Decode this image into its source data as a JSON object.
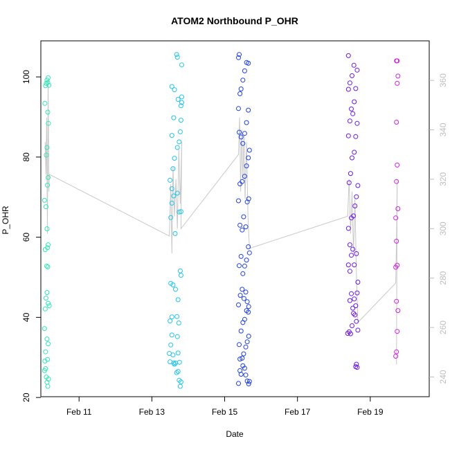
{
  "chart_data": {
    "type": "scatter",
    "title": "ATOM2 Northbound P_OHR",
    "xlabel": "Date",
    "ylabel": "P_OHR",
    "x_unit": "days (Feb 2024)",
    "xlim": [
      9.95,
      20.62
    ],
    "ylim": [
      20.2,
      109.0
    ],
    "y2lim": [
      232.0,
      376.0
    ],
    "x_ticks": [
      11,
      13,
      15,
      17,
      19
    ],
    "x_tick_labels": [
      "Feb 11",
      "Feb 13",
      "Feb 15",
      "Feb 17",
      "Feb 19"
    ],
    "y_ticks": [
      20,
      40,
      60,
      80,
      100
    ],
    "y_tick_labels": [
      "20",
      "40",
      "60",
      "80",
      "100"
    ],
    "y2_ticks": [
      240,
      260,
      280,
      300,
      320,
      340,
      360
    ],
    "y2_tick_labels": [
      "240",
      "260",
      "280",
      "300",
      "320",
      "340",
      "360"
    ],
    "grid": false,
    "legend": "none",
    "colors": {
      "cluster1": "#2ee8b6",
      "cluster2": "#1fc4ec",
      "cluster3": "#1f3fe6",
      "cluster4": "#6a18e6",
      "cluster5": "#d21ee2",
      "line": "#c8c8c8",
      "axis": "#000000",
      "right_axis": "#bdbdbd"
    },
    "series": [
      {
        "color": "#2ee8b6",
        "points": [
          [
            10.05,
            26.7
          ],
          [
            10.06,
            29.1
          ],
          [
            10.08,
            31.4
          ],
          [
            10.05,
            37.2
          ],
          [
            10.07,
            42.1
          ],
          [
            10.09,
            44.8
          ],
          [
            10.12,
            46.2
          ],
          [
            10.15,
            43.5
          ],
          [
            10.18,
            42.9
          ],
          [
            10.08,
            27.2
          ],
          [
            10.1,
            25.1
          ],
          [
            10.12,
            23.8
          ],
          [
            10.14,
            22.8
          ],
          [
            10.16,
            24.6
          ],
          [
            10.13,
            29.5
          ],
          [
            10.15,
            33.4
          ],
          [
            10.12,
            34.6
          ],
          [
            10.11,
            52.8
          ],
          [
            10.07,
            56.9
          ],
          [
            10.13,
            57.4
          ],
          [
            10.15,
            58.1
          ],
          [
            10.14,
            52.6
          ],
          [
            10.05,
            69.2
          ],
          [
            10.09,
            67.6
          ],
          [
            10.12,
            62.1
          ],
          [
            10.13,
            73.0
          ],
          [
            10.15,
            74.9
          ],
          [
            10.1,
            80.5
          ],
          [
            10.12,
            82.4
          ],
          [
            10.16,
            88.4
          ],
          [
            10.14,
            91.2
          ],
          [
            10.06,
            93.4
          ],
          [
            10.08,
            97.8
          ],
          [
            10.1,
            98.4
          ],
          [
            10.12,
            99.2
          ],
          [
            10.15,
            99.8
          ],
          [
            10.17,
            97.9
          ],
          [
            10.14,
            98.6
          ]
        ]
      },
      {
        "color": "#1fc4ec",
        "points": [
          [
            13.48,
            31.0
          ],
          [
            13.5,
            28.9
          ],
          [
            13.52,
            33.1
          ],
          [
            13.55,
            35.6
          ],
          [
            13.58,
            30.6
          ],
          [
            13.6,
            28.6
          ],
          [
            13.62,
            28.3
          ],
          [
            13.65,
            28.6
          ],
          [
            13.68,
            26.2
          ],
          [
            13.72,
            26.5
          ],
          [
            13.75,
            24.3
          ],
          [
            13.78,
            22.8
          ],
          [
            13.8,
            23.9
          ],
          [
            13.76,
            28.8
          ],
          [
            13.72,
            31.1
          ],
          [
            13.7,
            35.2
          ],
          [
            13.74,
            38.6
          ],
          [
            13.69,
            40.2
          ],
          [
            13.55,
            40.1
          ],
          [
            13.5,
            39.1
          ],
          [
            13.52,
            48.5
          ],
          [
            13.58,
            48.1
          ],
          [
            13.65,
            47.0
          ],
          [
            13.72,
            44.4
          ],
          [
            13.78,
            51.6
          ],
          [
            13.8,
            50.5
          ],
          [
            13.64,
            60.9
          ],
          [
            13.52,
            64.9
          ],
          [
            13.55,
            68.5
          ],
          [
            13.6,
            70.3
          ],
          [
            13.7,
            71.0
          ],
          [
            13.75,
            66.3
          ],
          [
            13.8,
            66.4
          ],
          [
            13.5,
            74.2
          ],
          [
            13.55,
            72.1
          ],
          [
            13.58,
            77.1
          ],
          [
            13.62,
            79.7
          ],
          [
            13.7,
            82.4
          ],
          [
            13.75,
            83.8
          ],
          [
            13.78,
            86.3
          ],
          [
            13.8,
            89.2
          ],
          [
            13.55,
            85.4
          ],
          [
            13.6,
            89.8
          ],
          [
            13.8,
            92.8
          ],
          [
            13.82,
            93.6
          ],
          [
            13.82,
            95.0
          ],
          [
            13.55,
            97.6
          ],
          [
            13.62,
            96.8
          ],
          [
            13.72,
            94.4
          ],
          [
            13.82,
            103.0
          ],
          [
            13.68,
            105.6
          ],
          [
            13.7,
            104.9
          ]
        ]
      },
      {
        "color": "#1f3fe6",
        "points": [
          [
            15.38,
            23.5
          ],
          [
            15.42,
            26.7
          ],
          [
            15.45,
            25.8
          ],
          [
            15.5,
            27.9
          ],
          [
            15.55,
            27.3
          ],
          [
            15.58,
            25.6
          ],
          [
            15.62,
            24.1
          ],
          [
            15.66,
            23.4
          ],
          [
            15.68,
            24.0
          ],
          [
            15.42,
            29.6
          ],
          [
            15.48,
            29.8
          ],
          [
            15.52,
            30.9
          ],
          [
            15.58,
            32.6
          ],
          [
            15.62,
            33.9
          ],
          [
            15.66,
            35.3
          ],
          [
            15.4,
            33.2
          ],
          [
            15.45,
            36.6
          ],
          [
            15.5,
            38.7
          ],
          [
            15.55,
            39.5
          ],
          [
            15.6,
            41.7
          ],
          [
            15.65,
            41.3
          ],
          [
            15.38,
            43.1
          ],
          [
            15.43,
            45.5
          ],
          [
            15.48,
            47.0
          ],
          [
            15.53,
            44.7
          ],
          [
            15.58,
            46.3
          ],
          [
            15.62,
            43.9
          ],
          [
            15.66,
            42.7
          ],
          [
            15.4,
            52.9
          ],
          [
            15.45,
            55.2
          ],
          [
            15.5,
            50.9
          ],
          [
            15.55,
            52.8
          ],
          [
            15.6,
            54.3
          ],
          [
            15.65,
            57.6
          ],
          [
            15.68,
            56.1
          ],
          [
            15.42,
            63.0
          ],
          [
            15.48,
            61.8
          ],
          [
            15.52,
            65.1
          ],
          [
            15.58,
            62.6
          ],
          [
            15.62,
            68.8
          ],
          [
            15.66,
            69.6
          ],
          [
            15.38,
            69.1
          ],
          [
            15.42,
            73.3
          ],
          [
            15.48,
            73.9
          ],
          [
            15.55,
            75.2
          ],
          [
            15.6,
            77.8
          ],
          [
            15.65,
            79.8
          ],
          [
            15.68,
            81.7
          ],
          [
            15.4,
            86.2
          ],
          [
            15.45,
            85.0
          ],
          [
            15.5,
            83.4
          ],
          [
            15.55,
            85.9
          ],
          [
            15.6,
            88.6
          ],
          [
            15.65,
            91.7
          ],
          [
            15.38,
            92.1
          ],
          [
            15.42,
            95.8
          ],
          [
            15.45,
            97.0
          ],
          [
            15.5,
            99.2
          ],
          [
            15.55,
            101.5
          ],
          [
            15.6,
            103.6
          ],
          [
            15.65,
            103.4
          ],
          [
            15.38,
            104.8
          ],
          [
            15.4,
            105.6
          ]
        ]
      },
      {
        "color": "#6a18e6",
        "points": [
          [
            18.38,
            36.0
          ],
          [
            18.42,
            36.4
          ],
          [
            18.46,
            35.9
          ],
          [
            18.5,
            37.9
          ],
          [
            18.54,
            41.0
          ],
          [
            18.58,
            40.6
          ],
          [
            18.62,
            39.0
          ],
          [
            18.66,
            36.8
          ],
          [
            18.44,
            44.2
          ],
          [
            18.48,
            45.9
          ],
          [
            18.52,
            42.3
          ],
          [
            18.56,
            44.6
          ],
          [
            18.6,
            42.9
          ],
          [
            18.64,
            46.1
          ],
          [
            18.66,
            48.8
          ],
          [
            18.6,
            27.7
          ],
          [
            18.62,
            28.3
          ],
          [
            18.64,
            27.5
          ],
          [
            18.4,
            53.1
          ],
          [
            18.44,
            51.5
          ],
          [
            18.48,
            55.5
          ],
          [
            18.52,
            57.0
          ],
          [
            18.56,
            53.1
          ],
          [
            18.62,
            55.9
          ],
          [
            18.4,
            62.2
          ],
          [
            18.44,
            58.1
          ],
          [
            18.48,
            64.8
          ],
          [
            18.54,
            65.3
          ],
          [
            18.58,
            67.8
          ],
          [
            18.62,
            70.1
          ],
          [
            18.66,
            72.9
          ],
          [
            18.42,
            73.6
          ],
          [
            18.46,
            75.9
          ],
          [
            18.5,
            79.8
          ],
          [
            18.56,
            81.2
          ],
          [
            18.6,
            85.1
          ],
          [
            18.64,
            88.4
          ],
          [
            18.4,
            85.3
          ],
          [
            18.44,
            89.0
          ],
          [
            18.48,
            92.0
          ],
          [
            18.52,
            90.8
          ],
          [
            18.56,
            93.8
          ],
          [
            18.6,
            97.1
          ],
          [
            18.64,
            101.7
          ],
          [
            18.4,
            96.9
          ],
          [
            18.44,
            98.5
          ],
          [
            18.5,
            100.3
          ],
          [
            18.55,
            102.9
          ],
          [
            18.4,
            105.3
          ]
        ]
      },
      {
        "color": "#d21ee2",
        "points": [
          [
            19.7,
            30.3
          ],
          [
            19.72,
            31.4
          ],
          [
            19.74,
            36.5
          ],
          [
            19.76,
            41.7
          ],
          [
            19.72,
            44.0
          ],
          [
            19.7,
            52.5
          ],
          [
            19.74,
            53.0
          ],
          [
            19.72,
            59.0
          ],
          [
            19.7,
            64.8
          ],
          [
            19.76,
            67.1
          ],
          [
            19.72,
            73.9
          ],
          [
            19.74,
            78.0
          ],
          [
            19.72,
            88.7
          ],
          [
            19.74,
            98.4
          ],
          [
            19.76,
            100.2
          ],
          [
            19.72,
            104.0
          ],
          [
            19.74,
            104.0
          ]
        ]
      }
    ],
    "line_series": {
      "color": "#c8c8c8",
      "y_axis": "right",
      "points": [
        [
          10.07,
          335
        ],
        [
          10.09,
          322
        ],
        [
          10.11,
          345
        ],
        [
          10.13,
          298
        ],
        [
          10.15,
          360
        ],
        [
          10.17,
          315
        ],
        [
          10.18,
          322
        ],
        [
          13.48,
          297
        ],
        [
          13.52,
          318
        ],
        [
          13.55,
          290
        ],
        [
          13.58,
          325
        ],
        [
          13.62,
          305
        ],
        [
          13.66,
          320
        ],
        [
          13.7,
          300
        ],
        [
          13.74,
          332
        ],
        [
          13.78,
          310
        ],
        [
          13.82,
          335
        ],
        [
          13.8,
          300
        ],
        [
          15.38,
          330
        ],
        [
          15.41,
          345
        ],
        [
          15.44,
          315
        ],
        [
          15.47,
          340
        ],
        [
          15.5,
          320
        ],
        [
          15.53,
          338
        ],
        [
          15.56,
          312
        ],
        [
          15.6,
          335
        ],
        [
          15.64,
          305
        ],
        [
          15.68,
          292
        ],
        [
          18.38,
          305
        ],
        [
          18.42,
          320
        ],
        [
          18.46,
          298
        ],
        [
          18.5,
          315
        ],
        [
          18.54,
          290
        ],
        [
          18.58,
          312
        ],
        [
          18.62,
          282
        ],
        [
          18.66,
          262
        ],
        [
          19.7,
          278
        ],
        [
          19.72,
          295
        ],
        [
          19.74,
          320
        ],
        [
          19.72,
          245
        ]
      ]
    }
  }
}
